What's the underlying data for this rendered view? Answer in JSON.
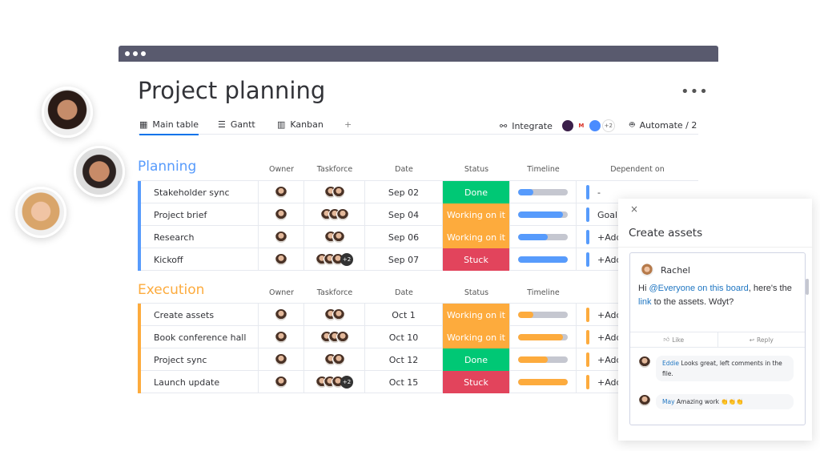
{
  "window": {
    "title": "Project planning",
    "more": "•••"
  },
  "tabs": [
    {
      "label": "Main table",
      "icon": "table-icon"
    },
    {
      "label": "Gantt",
      "icon": "gantt-icon"
    },
    {
      "label": "Kanban",
      "icon": "kanban-icon"
    },
    {
      "label": "+",
      "icon": "add-icon"
    }
  ],
  "toolbar": {
    "integrate": "Integrate",
    "integrations_more": "+2",
    "automate": "Automate / 2"
  },
  "columns": {
    "owner": "Owner",
    "taskforce": "Taskforce",
    "date": "Date",
    "status": "Status",
    "timeline": "Timeline",
    "dependent": "Dependent on"
  },
  "colors": {
    "planning": "#579bfc",
    "execution": "#fdab3d",
    "done": "#00c875",
    "working": "#fdab3d",
    "stuck": "#e2445c"
  },
  "groups": [
    {
      "title": "Planning",
      "rows": [
        {
          "name": "Stakeholder sync",
          "date": "Sep 02",
          "status": "Done",
          "status_key": "done",
          "timeline": 0.3,
          "dependent": "-",
          "tf_more": ""
        },
        {
          "name": "Project brief",
          "date": "Sep 04",
          "status": "Working on it",
          "status_key": "working",
          "timeline": 0.9,
          "dependent": "Goal",
          "tf_more": ""
        },
        {
          "name": "Research",
          "date": "Sep 06",
          "status": "Working on it",
          "status_key": "working",
          "timeline": 0.6,
          "dependent": "+Add",
          "tf_more": ""
        },
        {
          "name": "Kickoff",
          "date": "Sep 07",
          "status": "Stuck",
          "status_key": "stuck",
          "timeline": 1.0,
          "dependent": "+Add",
          "tf_more": "+2"
        }
      ]
    },
    {
      "title": "Execution",
      "rows": [
        {
          "name": "Create assets",
          "date": "Oct 1",
          "status": "Working on it",
          "status_key": "working",
          "timeline": 0.3,
          "dependent": "+Add",
          "tf_more": ""
        },
        {
          "name": "Book conference hall",
          "date": "Oct 10",
          "status": "Working on it",
          "status_key": "working",
          "timeline": 0.9,
          "dependent": "+Add",
          "tf_more": ""
        },
        {
          "name": "Project sync",
          "date": "Oct 12",
          "status": "Done",
          "status_key": "done",
          "timeline": 0.6,
          "dependent": "+Add",
          "tf_more": ""
        },
        {
          "name": "Launch update",
          "date": "Oct 15",
          "status": "Stuck",
          "status_key": "stuck",
          "timeline": 1.0,
          "dependent": "+Add",
          "tf_more": "+2"
        }
      ]
    }
  ],
  "panel": {
    "close": "×",
    "title": "Create assets",
    "author": "Rachel",
    "text_pre": "Hi ",
    "mention": "@Everyone on this board",
    "text_mid": ", here's the ",
    "link": "link",
    "text_post": " to the assets. Wdyt?",
    "like": "Like",
    "reply": "Reply",
    "replies": [
      {
        "name": "Eddie",
        "text": "Looks great, left comments in the file."
      },
      {
        "name": "May",
        "text": "Amazing work 👏👏👏"
      }
    ]
  }
}
